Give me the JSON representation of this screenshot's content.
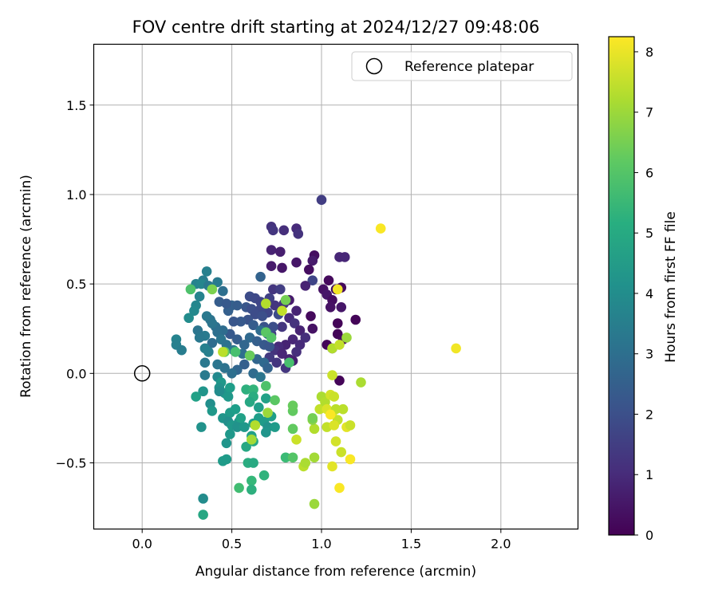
{
  "chart_data": {
    "type": "scatter",
    "title": "FOV centre drift starting at 2024/12/27 09:48:06",
    "xlabel": "Angular distance from reference (arcmin)",
    "ylabel": "Rotation from reference (arcmin)",
    "xlim": [
      -0.27,
      2.43
    ],
    "ylim": [
      -0.87,
      1.84
    ],
    "xticks": [
      "0.0",
      "0.5",
      "1.0",
      "1.5",
      "2.0"
    ],
    "xtick_values": [
      0.0,
      0.5,
      1.0,
      1.5,
      2.0
    ],
    "yticks": [
      "−0.5",
      "0.0",
      "0.5",
      "1.0",
      "1.5"
    ],
    "ytick_values": [
      -0.5,
      0.0,
      0.5,
      1.0,
      1.5
    ],
    "grid": true,
    "legend": {
      "placement": "top-right",
      "entries": [
        "Reference platepar"
      ]
    },
    "reference_point": {
      "x": 0.0,
      "y": 0.0,
      "label": "Reference platepar"
    },
    "colorbar": {
      "label": "Hours from first FF file",
      "colormap": "viridis",
      "range": [
        0,
        8.25
      ],
      "ticks": [
        "0",
        "1",
        "2",
        "3",
        "4",
        "5",
        "6",
        "7",
        "8"
      ],
      "tick_values": [
        0,
        1,
        2,
        3,
        4,
        5,
        6,
        7,
        8
      ]
    },
    "points": [
      {
        "x": 1.0,
        "y": 0.97,
        "h": 1.5
      },
      {
        "x": 0.72,
        "y": 0.82,
        "h": 1.2
      },
      {
        "x": 0.73,
        "y": 0.8,
        "h": 1.3
      },
      {
        "x": 0.79,
        "y": 0.8,
        "h": 1.1
      },
      {
        "x": 0.86,
        "y": 0.81,
        "h": 1.0
      },
      {
        "x": 0.87,
        "y": 0.78,
        "h": 1.2
      },
      {
        "x": 0.72,
        "y": 0.69,
        "h": 0.8
      },
      {
        "x": 0.77,
        "y": 0.68,
        "h": 0.7
      },
      {
        "x": 0.96,
        "y": 0.66,
        "h": 0.3
      },
      {
        "x": 0.95,
        "y": 0.63,
        "h": 0.6
      },
      {
        "x": 1.1,
        "y": 0.65,
        "h": 0.9
      },
      {
        "x": 1.13,
        "y": 0.65,
        "h": 0.9
      },
      {
        "x": 0.72,
        "y": 0.6,
        "h": 0.6
      },
      {
        "x": 0.78,
        "y": 0.59,
        "h": 0.5
      },
      {
        "x": 0.86,
        "y": 0.62,
        "h": 0.5
      },
      {
        "x": 0.93,
        "y": 0.58,
        "h": 0.3
      },
      {
        "x": 1.04,
        "y": 0.52,
        "h": 0.2
      },
      {
        "x": 0.66,
        "y": 0.54,
        "h": 2.6
      },
      {
        "x": 0.95,
        "y": 0.52,
        "h": 1.7
      },
      {
        "x": 0.91,
        "y": 0.49,
        "h": 0.8
      },
      {
        "x": 1.01,
        "y": 0.47,
        "h": 0.4
      },
      {
        "x": 1.08,
        "y": 0.47,
        "h": 0.3
      },
      {
        "x": 1.11,
        "y": 0.48,
        "h": 0.2
      },
      {
        "x": 0.73,
        "y": 0.47,
        "h": 1.3
      },
      {
        "x": 0.77,
        "y": 0.47,
        "h": 1.5
      },
      {
        "x": 1.03,
        "y": 0.44,
        "h": 0.5
      },
      {
        "x": 1.06,
        "y": 0.41,
        "h": 0.3
      },
      {
        "x": 1.05,
        "y": 0.37,
        "h": 0.4
      },
      {
        "x": 1.11,
        "y": 0.37,
        "h": 0.5
      },
      {
        "x": 0.82,
        "y": 0.41,
        "h": 0.6
      },
      {
        "x": 0.86,
        "y": 0.35,
        "h": 0.8
      },
      {
        "x": 0.71,
        "y": 0.42,
        "h": 1.6
      },
      {
        "x": 0.74,
        "y": 0.38,
        "h": 1.3
      },
      {
        "x": 0.79,
        "y": 0.39,
        "h": 1.2
      },
      {
        "x": 0.7,
        "y": 0.34,
        "h": 1.7
      },
      {
        "x": 0.76,
        "y": 0.33,
        "h": 1.9
      },
      {
        "x": 0.94,
        "y": 0.32,
        "h": 0.2
      },
      {
        "x": 1.09,
        "y": 0.28,
        "h": 0.1
      },
      {
        "x": 1.19,
        "y": 0.3,
        "h": 0.1
      },
      {
        "x": 0.82,
        "y": 0.31,
        "h": 1.0
      },
      {
        "x": 0.85,
        "y": 0.28,
        "h": 1.2
      },
      {
        "x": 0.88,
        "y": 0.24,
        "h": 0.8
      },
      {
        "x": 0.95,
        "y": 0.25,
        "h": 0.4
      },
      {
        "x": 0.78,
        "y": 0.26,
        "h": 1.3
      },
      {
        "x": 0.72,
        "y": 0.22,
        "h": 1.5
      },
      {
        "x": 0.91,
        "y": 0.2,
        "h": 1.1
      },
      {
        "x": 1.09,
        "y": 0.22,
        "h": 0.1
      },
      {
        "x": 1.12,
        "y": 0.19,
        "h": 0.2
      },
      {
        "x": 0.84,
        "y": 0.19,
        "h": 0.9
      },
      {
        "x": 0.8,
        "y": 0.16,
        "h": 0.8
      },
      {
        "x": 0.76,
        "y": 0.15,
        "h": 1.0
      },
      {
        "x": 0.88,
        "y": 0.16,
        "h": 1.0
      },
      {
        "x": 1.03,
        "y": 0.16,
        "h": 0.1
      },
      {
        "x": 1.06,
        "y": 0.14,
        "h": 0.3
      },
      {
        "x": 0.74,
        "y": 0.13,
        "h": 1.2
      },
      {
        "x": 0.78,
        "y": 0.11,
        "h": 0.9
      },
      {
        "x": 0.86,
        "y": 0.12,
        "h": 1.1
      },
      {
        "x": 0.82,
        "y": 0.08,
        "h": 0.8
      },
      {
        "x": 0.71,
        "y": 0.09,
        "h": 1.4
      },
      {
        "x": 0.75,
        "y": 0.06,
        "h": 1.3
      },
      {
        "x": 0.8,
        "y": 0.03,
        "h": 1.3
      },
      {
        "x": 0.84,
        "y": 0.07,
        "h": 0.7
      },
      {
        "x": 1.1,
        "y": -0.04,
        "h": 0.1
      },
      {
        "x": 0.6,
        "y": 0.43,
        "h": 1.9
      },
      {
        "x": 0.63,
        "y": 0.42,
        "h": 1.8
      },
      {
        "x": 0.66,
        "y": 0.4,
        "h": 1.7
      },
      {
        "x": 0.58,
        "y": 0.37,
        "h": 2.2
      },
      {
        "x": 0.61,
        "y": 0.36,
        "h": 2.0
      },
      {
        "x": 0.66,
        "y": 0.36,
        "h": 1.8
      },
      {
        "x": 0.5,
        "y": 0.38,
        "h": 2.6
      },
      {
        "x": 0.53,
        "y": 0.38,
        "h": 2.4
      },
      {
        "x": 0.48,
        "y": 0.35,
        "h": 2.5
      },
      {
        "x": 0.43,
        "y": 0.4,
        "h": 2.4
      },
      {
        "x": 0.47,
        "y": 0.39,
        "h": 2.3
      },
      {
        "x": 0.63,
        "y": 0.33,
        "h": 1.9
      },
      {
        "x": 0.67,
        "y": 0.32,
        "h": 2.0
      },
      {
        "x": 0.59,
        "y": 0.3,
        "h": 2.1
      },
      {
        "x": 0.55,
        "y": 0.29,
        "h": 2.3
      },
      {
        "x": 0.51,
        "y": 0.29,
        "h": 2.2
      },
      {
        "x": 0.62,
        "y": 0.27,
        "h": 2.4
      },
      {
        "x": 0.68,
        "y": 0.26,
        "h": 2.1
      },
      {
        "x": 0.73,
        "y": 0.26,
        "h": 2.0
      },
      {
        "x": 0.66,
        "y": 0.24,
        "h": 2.9
      },
      {
        "x": 0.7,
        "y": 0.22,
        "h": 2.6
      },
      {
        "x": 0.6,
        "y": 0.2,
        "h": 2.8
      },
      {
        "x": 0.64,
        "y": 0.18,
        "h": 2.5
      },
      {
        "x": 0.68,
        "y": 0.16,
        "h": 2.3
      },
      {
        "x": 0.71,
        "y": 0.15,
        "h": 2.2
      },
      {
        "x": 0.53,
        "y": 0.19,
        "h": 2.4
      },
      {
        "x": 0.57,
        "y": 0.16,
        "h": 2.7
      },
      {
        "x": 0.49,
        "y": 0.22,
        "h": 2.3
      },
      {
        "x": 0.45,
        "y": 0.24,
        "h": 2.9
      },
      {
        "x": 0.41,
        "y": 0.26,
        "h": 3.0
      },
      {
        "x": 0.38,
        "y": 0.3,
        "h": 3.1
      },
      {
        "x": 0.36,
        "y": 0.32,
        "h": 3.3
      },
      {
        "x": 0.39,
        "y": 0.28,
        "h": 3.2
      },
      {
        "x": 0.42,
        "y": 0.23,
        "h": 3.0
      },
      {
        "x": 0.44,
        "y": 0.19,
        "h": 3.2
      },
      {
        "x": 0.39,
        "y": 0.17,
        "h": 2.9
      },
      {
        "x": 0.35,
        "y": 0.21,
        "h": 3.4
      },
      {
        "x": 0.31,
        "y": 0.24,
        "h": 3.2
      },
      {
        "x": 0.32,
        "y": 0.2,
        "h": 3.3
      },
      {
        "x": 0.35,
        "y": 0.14,
        "h": 3.6
      },
      {
        "x": 0.37,
        "y": 0.12,
        "h": 3.6
      },
      {
        "x": 0.47,
        "y": 0.16,
        "h": 3.1
      },
      {
        "x": 0.51,
        "y": 0.13,
        "h": 3.3
      },
      {
        "x": 0.56,
        "y": 0.11,
        "h": 3.0
      },
      {
        "x": 0.6,
        "y": 0.1,
        "h": 2.7
      },
      {
        "x": 0.64,
        "y": 0.08,
        "h": 2.7
      },
      {
        "x": 0.68,
        "y": 0.06,
        "h": 2.8
      },
      {
        "x": 0.57,
        "y": 0.05,
        "h": 2.5
      },
      {
        "x": 0.53,
        "y": 0.02,
        "h": 2.7
      },
      {
        "x": 0.5,
        "y": 0.0,
        "h": 3.0
      },
      {
        "x": 0.46,
        "y": 0.03,
        "h": 3.1
      },
      {
        "x": 0.42,
        "y": 0.05,
        "h": 3.2
      },
      {
        "x": 0.62,
        "y": 0.0,
        "h": 2.9
      },
      {
        "x": 0.66,
        "y": -0.02,
        "h": 3.2
      },
      {
        "x": 0.7,
        "y": 0.03,
        "h": 2.6
      },
      {
        "x": 0.34,
        "y": 0.52,
        "h": 3.5
      },
      {
        "x": 0.3,
        "y": 0.5,
        "h": 3.7
      },
      {
        "x": 0.33,
        "y": 0.5,
        "h": 3.8
      },
      {
        "x": 0.36,
        "y": 0.57,
        "h": 3.6
      },
      {
        "x": 0.37,
        "y": 0.49,
        "h": 3.3
      },
      {
        "x": 0.42,
        "y": 0.51,
        "h": 3.4
      },
      {
        "x": 0.45,
        "y": 0.46,
        "h": 3.0
      },
      {
        "x": 0.32,
        "y": 0.43,
        "h": 3.7
      },
      {
        "x": 0.3,
        "y": 0.38,
        "h": 3.8
      },
      {
        "x": 0.29,
        "y": 0.35,
        "h": 3.9
      },
      {
        "x": 0.26,
        "y": 0.31,
        "h": 4.0
      },
      {
        "x": 0.19,
        "y": 0.19,
        "h": 3.7
      },
      {
        "x": 0.19,
        "y": 0.16,
        "h": 3.6
      },
      {
        "x": 0.22,
        "y": 0.13,
        "h": 3.5
      },
      {
        "x": 0.35,
        "y": 0.06,
        "h": 3.3
      },
      {
        "x": 0.35,
        "y": -0.01,
        "h": 3.4
      },
      {
        "x": 0.42,
        "y": -0.02,
        "h": 3.9
      },
      {
        "x": 0.44,
        "y": -0.05,
        "h": 4.4
      },
      {
        "x": 0.43,
        "y": -0.08,
        "h": 4.2
      },
      {
        "x": 0.46,
        "y": -0.11,
        "h": 4.3
      },
      {
        "x": 0.43,
        "y": -0.1,
        "h": 4.0
      },
      {
        "x": 0.34,
        "y": -0.1,
        "h": 4.3
      },
      {
        "x": 0.3,
        "y": -0.13,
        "h": 4.7
      },
      {
        "x": 0.38,
        "y": -0.17,
        "h": 4.1
      },
      {
        "x": 0.39,
        "y": -0.21,
        "h": 4.4
      },
      {
        "x": 0.49,
        "y": -0.08,
        "h": 4.6
      },
      {
        "x": 0.48,
        "y": -0.13,
        "h": 4.4
      },
      {
        "x": 0.49,
        "y": -0.22,
        "h": 4.5
      },
      {
        "x": 0.52,
        "y": -0.2,
        "h": 4.6
      },
      {
        "x": 0.45,
        "y": -0.25,
        "h": 4.3
      },
      {
        "x": 0.48,
        "y": -0.27,
        "h": 4.1
      },
      {
        "x": 0.5,
        "y": -0.29,
        "h": 4.4
      },
      {
        "x": 0.54,
        "y": -0.27,
        "h": 4.3
      },
      {
        "x": 0.55,
        "y": -0.25,
        "h": 4.7
      },
      {
        "x": 0.53,
        "y": -0.3,
        "h": 4.2
      },
      {
        "x": 0.58,
        "y": -0.09,
        "h": 5.2
      },
      {
        "x": 0.62,
        "y": -0.09,
        "h": 5.4
      },
      {
        "x": 0.62,
        "y": -0.13,
        "h": 5.1
      },
      {
        "x": 0.6,
        "y": -0.16,
        "h": 4.9
      },
      {
        "x": 0.65,
        "y": -0.19,
        "h": 4.6
      },
      {
        "x": 0.69,
        "y": -0.14,
        "h": 4.7
      },
      {
        "x": 0.65,
        "y": -0.25,
        "h": 4.6
      },
      {
        "x": 0.68,
        "y": -0.27,
        "h": 4.5
      },
      {
        "x": 0.72,
        "y": -0.24,
        "h": 4.6
      },
      {
        "x": 0.7,
        "y": -0.3,
        "h": 4.2
      },
      {
        "x": 0.74,
        "y": -0.3,
        "h": 4.5
      },
      {
        "x": 0.69,
        "y": -0.33,
        "h": 4.3
      },
      {
        "x": 0.61,
        "y": -0.35,
        "h": 4.7
      },
      {
        "x": 0.62,
        "y": -0.28,
        "h": 4.6
      },
      {
        "x": 0.57,
        "y": -0.3,
        "h": 4.4
      },
      {
        "x": 0.49,
        "y": -0.34,
        "h": 4.4
      },
      {
        "x": 0.47,
        "y": -0.39,
        "h": 4.3
      },
      {
        "x": 0.33,
        "y": -0.3,
        "h": 4.2
      },
      {
        "x": 0.58,
        "y": -0.41,
        "h": 4.9
      },
      {
        "x": 0.62,
        "y": -0.38,
        "h": 5.0
      },
      {
        "x": 0.45,
        "y": -0.49,
        "h": 4.5
      },
      {
        "x": 0.47,
        "y": -0.48,
        "h": 4.5
      },
      {
        "x": 0.59,
        "y": -0.5,
        "h": 5.1
      },
      {
        "x": 0.62,
        "y": -0.5,
        "h": 5.0
      },
      {
        "x": 0.68,
        "y": -0.57,
        "h": 5.3
      },
      {
        "x": 0.54,
        "y": -0.64,
        "h": 5.7
      },
      {
        "x": 0.61,
        "y": -0.6,
        "h": 5.5
      },
      {
        "x": 0.61,
        "y": -0.65,
        "h": 5.2
      },
      {
        "x": 0.34,
        "y": -0.7,
        "h": 4.0
      },
      {
        "x": 0.34,
        "y": -0.79,
        "h": 4.9
      },
      {
        "x": 0.27,
        "y": 0.47,
        "h": 5.9
      },
      {
        "x": 0.39,
        "y": 0.47,
        "h": 6.6
      },
      {
        "x": 0.46,
        "y": 0.12,
        "h": 6.2
      },
      {
        "x": 0.52,
        "y": 0.12,
        "h": 5.8
      },
      {
        "x": 0.6,
        "y": 0.1,
        "h": 6.3
      },
      {
        "x": 0.69,
        "y": 0.23,
        "h": 6.1
      },
      {
        "x": 0.72,
        "y": 0.2,
        "h": 6.0
      },
      {
        "x": 0.8,
        "y": 0.41,
        "h": 6.5
      },
      {
        "x": 0.82,
        "y": 0.06,
        "h": 5.8
      },
      {
        "x": 0.69,
        "y": -0.07,
        "h": 5.9
      },
      {
        "x": 0.74,
        "y": -0.15,
        "h": 6.1
      },
      {
        "x": 0.8,
        "y": -0.47,
        "h": 5.6
      },
      {
        "x": 0.84,
        "y": -0.47,
        "h": 6.0
      },
      {
        "x": 0.84,
        "y": -0.31,
        "h": 6.2
      },
      {
        "x": 0.84,
        "y": -0.21,
        "h": 6.2
      },
      {
        "x": 0.84,
        "y": -0.18,
        "h": 6.3
      },
      {
        "x": 0.7,
        "y": -0.22,
        "h": 7.0
      },
      {
        "x": 0.63,
        "y": -0.29,
        "h": 7.3
      },
      {
        "x": 0.61,
        "y": -0.37,
        "h": 7.1
      },
      {
        "x": 0.69,
        "y": 0.39,
        "h": 7.3
      },
      {
        "x": 0.78,
        "y": 0.35,
        "h": 7.5
      },
      {
        "x": 0.45,
        "y": 0.12,
        "h": 7.4
      },
      {
        "x": 0.86,
        "y": -0.37,
        "h": 7.6
      },
      {
        "x": 0.9,
        "y": -0.52,
        "h": 7.4
      },
      {
        "x": 0.91,
        "y": -0.5,
        "h": 7.2
      },
      {
        "x": 0.96,
        "y": -0.73,
        "h": 7.0
      },
      {
        "x": 0.96,
        "y": -0.47,
        "h": 7.1
      },
      {
        "x": 0.96,
        "y": -0.31,
        "h": 7.3
      },
      {
        "x": 0.95,
        "y": -0.26,
        "h": 6.8
      },
      {
        "x": 0.95,
        "y": -0.25,
        "h": 6.5
      },
      {
        "x": 0.99,
        "y": -0.2,
        "h": 7.5
      },
      {
        "x": 1.0,
        "y": -0.13,
        "h": 7.2
      },
      {
        "x": 1.02,
        "y": -0.16,
        "h": 7.3
      },
      {
        "x": 1.03,
        "y": -0.2,
        "h": 7.8
      },
      {
        "x": 1.05,
        "y": -0.12,
        "h": 7.7
      },
      {
        "x": 1.06,
        "y": -0.22,
        "h": 7.9
      },
      {
        "x": 1.07,
        "y": -0.13,
        "h": 7.6
      },
      {
        "x": 1.08,
        "y": -0.2,
        "h": 7.4
      },
      {
        "x": 1.09,
        "y": -0.26,
        "h": 7.5
      },
      {
        "x": 1.05,
        "y": -0.23,
        "h": 8.2
      },
      {
        "x": 1.06,
        "y": -0.01,
        "h": 7.6
      },
      {
        "x": 1.06,
        "y": 0.14,
        "h": 7.3
      },
      {
        "x": 1.1,
        "y": 0.16,
        "h": 7.5
      },
      {
        "x": 1.14,
        "y": 0.2,
        "h": 7.0
      },
      {
        "x": 1.03,
        "y": -0.3,
        "h": 7.5
      },
      {
        "x": 1.07,
        "y": -0.29,
        "h": 7.8
      },
      {
        "x": 1.12,
        "y": -0.2,
        "h": 7.4
      },
      {
        "x": 1.14,
        "y": -0.3,
        "h": 7.9
      },
      {
        "x": 1.16,
        "y": -0.29,
        "h": 7.6
      },
      {
        "x": 1.08,
        "y": -0.38,
        "h": 7.7
      },
      {
        "x": 1.11,
        "y": -0.44,
        "h": 7.6
      },
      {
        "x": 1.06,
        "y": -0.52,
        "h": 7.9
      },
      {
        "x": 1.1,
        "y": -0.64,
        "h": 8.2
      },
      {
        "x": 1.16,
        "y": -0.48,
        "h": 8.2
      },
      {
        "x": 1.22,
        "y": -0.05,
        "h": 7.2
      },
      {
        "x": 1.09,
        "y": 0.47,
        "h": 8.1
      },
      {
        "x": 1.33,
        "y": 0.81,
        "h": 8.2
      },
      {
        "x": 1.75,
        "y": 0.14,
        "h": 8.1
      }
    ]
  }
}
